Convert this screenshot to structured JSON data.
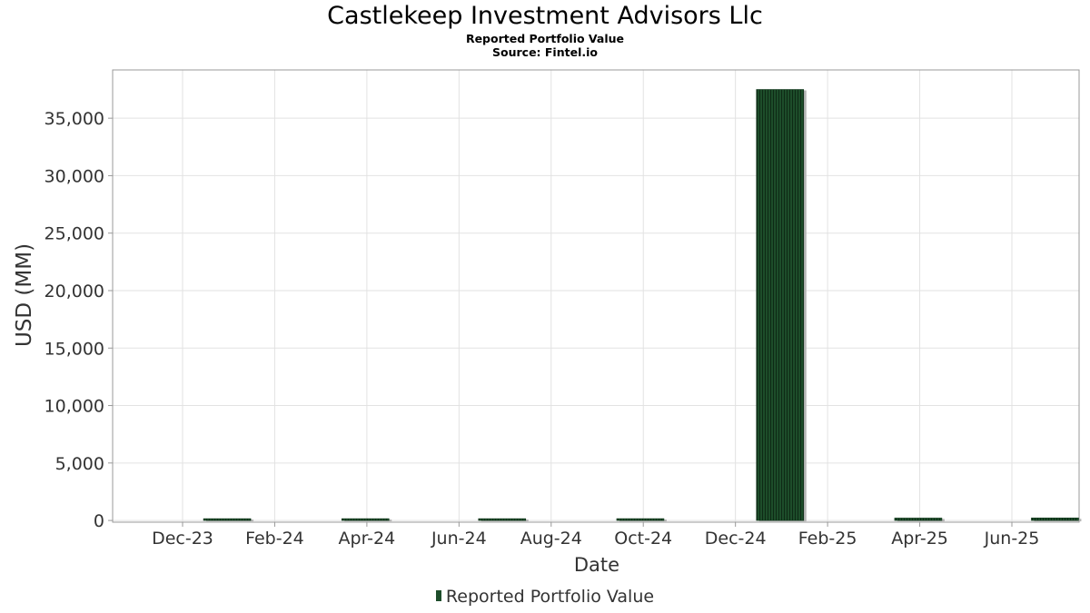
{
  "chart_data": {
    "type": "bar",
    "title": "Castlekeep Investment Advisors Llc",
    "subtitle": "Reported Portfolio Value",
    "source": "Source: Fintel.io",
    "xlabel": "Date",
    "ylabel": "USD (MM)",
    "x_tick_labels": [
      "Dec-23",
      "Feb-24",
      "Apr-24",
      "Jun-24",
      "Aug-24",
      "Oct-24",
      "Dec-24",
      "Feb-25",
      "Apr-25",
      "Jun-25"
    ],
    "y_tick_labels": [
      "0",
      "5,000",
      "10,000",
      "15,000",
      "20,000",
      "25,000",
      "30,000",
      "35,000"
    ],
    "y_ticks": [
      0,
      5000,
      10000,
      15000,
      20000,
      25000,
      30000,
      35000
    ],
    "ylim": [
      -150,
      39200
    ],
    "grid": true,
    "legend_position": "bottom-center",
    "series": [
      {
        "name": "Reported Portfolio Value",
        "color": "#1d4d2a",
        "x": [
          "2023-12-31",
          "2024-03-31",
          "2024-06-30",
          "2024-09-30",
          "2024-12-31",
          "2025-03-31",
          "2025-06-30"
        ],
        "values": [
          140,
          150,
          130,
          160,
          37500,
          210,
          220
        ]
      }
    ]
  }
}
